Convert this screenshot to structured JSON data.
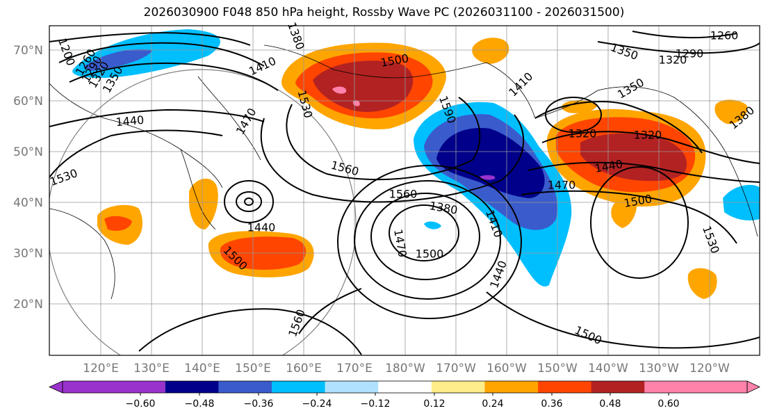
{
  "title": "2026030900 F048 850 hPa height, Rossby Wave PC (2026031100 - 2026031500)",
  "map": {
    "lat_labels": [
      "70°N",
      "60°N",
      "50°N",
      "40°N",
      "30°N",
      "20°N"
    ],
    "lon_labels": [
      "120°E",
      "130°E",
      "140°E",
      "150°E",
      "160°E",
      "170°E",
      "180°W",
      "170°W",
      "160°W",
      "150°W",
      "140°W",
      "130°W",
      "120°W"
    ],
    "contour_labels": [
      {
        "text": "1200"
      },
      {
        "text": "1260"
      },
      {
        "text": "1290"
      },
      {
        "text": "1320"
      },
      {
        "text": "1350"
      },
      {
        "text": "1380"
      },
      {
        "text": "1410"
      },
      {
        "text": "1440"
      },
      {
        "text": "1470"
      },
      {
        "text": "1500"
      },
      {
        "text": "1530"
      },
      {
        "text": "1560"
      },
      {
        "text": "1590"
      },
      {
        "text": "1260"
      },
      {
        "text": "1290"
      },
      {
        "text": "1320"
      },
      {
        "text": "1350"
      },
      {
        "text": "1380"
      },
      {
        "text": "1410"
      },
      {
        "text": "1440"
      },
      {
        "text": "1470"
      },
      {
        "text": "1500"
      },
      {
        "text": "1530"
      },
      {
        "text": "1560"
      },
      {
        "text": "1320"
      },
      {
        "text": "1350"
      },
      {
        "text": "1380"
      },
      {
        "text": "1410"
      },
      {
        "text": "1440"
      },
      {
        "text": "1470"
      },
      {
        "text": "1500"
      },
      {
        "text": "1500"
      },
      {
        "text": "1530"
      },
      {
        "text": "1560"
      },
      {
        "text": "1440"
      },
      {
        "text": "1320"
      },
      {
        "text": "1500"
      }
    ]
  },
  "colorbar": {
    "colors": [
      "#9932cc",
      "#00008b",
      "#3a5bcc",
      "#00bfff",
      "#b0e2ff",
      "#ffffff",
      "#ffec8b",
      "#ffa500",
      "#ff4500",
      "#b22222",
      "#ff82ab"
    ],
    "tick_labels": [
      "−0.60",
      "−0.48",
      "−0.36",
      "−0.24",
      "−0.12",
      "0.12",
      "0.24",
      "0.36",
      "0.48",
      "0.60"
    ]
  }
}
